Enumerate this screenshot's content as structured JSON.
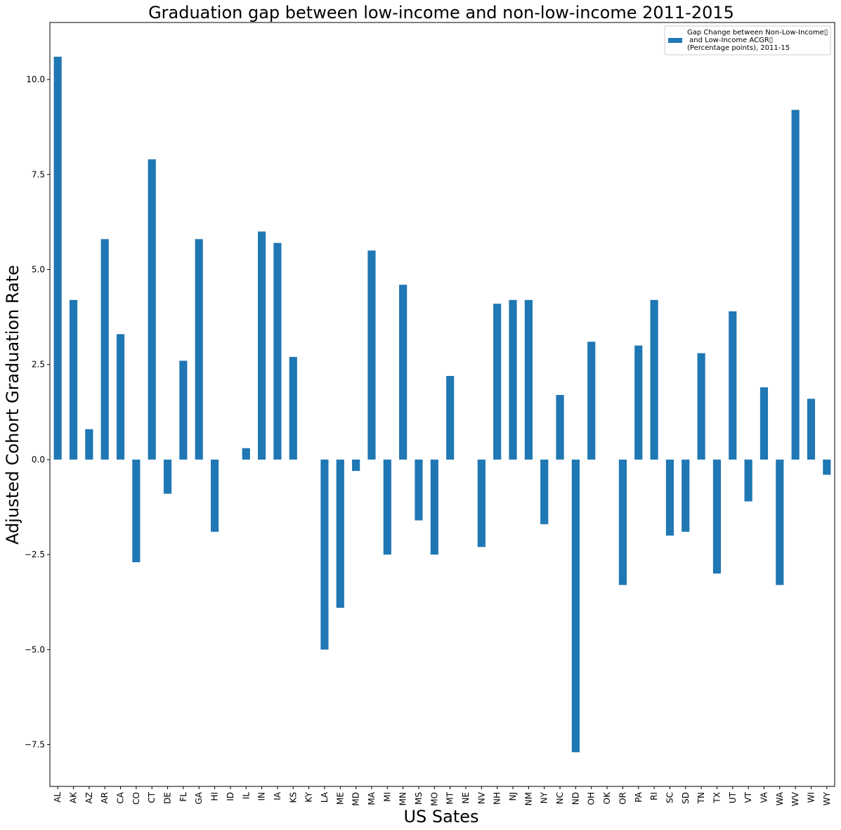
{
  "chart_data": {
    "type": "bar",
    "title": "Graduation gap between low-income and non-low-income 2011-2015",
    "xlabel": "US Sates",
    "ylabel": "Adjusted Cohort Graduation Rate",
    "ylim": [
      -8.6,
      11.5
    ],
    "yticks": [
      -7.5,
      -5.0,
      -2.5,
      0.0,
      2.5,
      5.0,
      7.5,
      10.0
    ],
    "ytick_labels": [
      "−7.5",
      "−5.0",
      "−2.5",
      "0.0",
      "2.5",
      "5.0",
      "7.5",
      "10.0"
    ],
    "grid": false,
    "legend_position": "top-right",
    "color": "#1f77b4",
    "categories": [
      "AL",
      "AK",
      "AZ",
      "AR",
      "CA",
      "CO",
      "CT",
      "DE",
      "FL",
      "GA",
      "HI",
      "ID",
      "IL",
      "IN",
      "IA",
      "KS",
      "KY",
      "LA",
      "ME",
      "MD",
      "MA",
      "MI",
      "MN",
      "MS",
      "MO",
      "MT",
      "NE",
      "NV",
      "NH",
      "NJ",
      "NM",
      "NY",
      "NC",
      "ND",
      "OH",
      "OK",
      "OR",
      "PA",
      "RI",
      "SC",
      "SD",
      "TN",
      "TX",
      "UT",
      "VT",
      "VA",
      "WA",
      "WV",
      "WI",
      "WY"
    ],
    "series": [
      {
        "name": "Gap Change between Non-Low-Income\u0000\n and Low-Income ACGR\u0000\n(Percentage points), 2011-15",
        "legend_lines": [
          "Gap Change between Non-Low-Income▯",
          " and Low-Income ACGR▯",
          "(Percentage points), 2011-15"
        ],
        "values": [
          10.6,
          4.2,
          0.8,
          5.8,
          3.3,
          -2.7,
          7.9,
          -0.9,
          2.6,
          5.8,
          -1.9,
          0.0,
          0.3,
          6.0,
          5.7,
          2.7,
          0.0,
          -5.0,
          -3.9,
          -0.3,
          5.5,
          -2.5,
          4.6,
          -1.6,
          -2.5,
          2.2,
          0.0,
          -2.3,
          4.1,
          4.2,
          4.2,
          -1.7,
          1.7,
          -7.7,
          3.1,
          0.0,
          -3.3,
          3.0,
          4.2,
          -2.0,
          -1.9,
          2.8,
          -3.0,
          3.9,
          -1.1,
          1.9,
          -3.3,
          9.2,
          1.6,
          -0.4
        ]
      }
    ]
  }
}
